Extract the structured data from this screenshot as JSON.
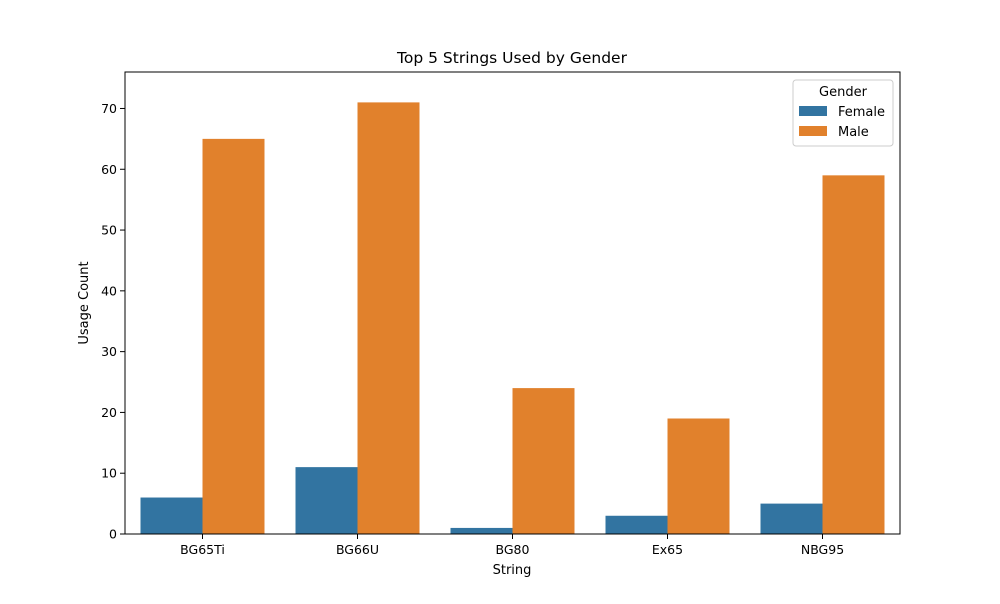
{
  "chart_data": {
    "type": "bar",
    "title": "Top 5 Strings Used by Gender",
    "xlabel": "String",
    "ylabel": "Usage Count",
    "categories": [
      "BG65Ti",
      "BG66U",
      "BG80",
      "Ex65",
      "NBG95"
    ],
    "series": [
      {
        "name": "Female",
        "color": "#3274a1",
        "values": [
          6,
          11,
          1,
          3,
          5
        ]
      },
      {
        "name": "Male",
        "color": "#e1812c",
        "values": [
          65,
          71,
          24,
          19,
          59
        ]
      }
    ],
    "ylim": [
      0,
      76
    ],
    "yticks": [
      "0",
      "10",
      "20",
      "30",
      "40",
      "50",
      "60",
      "70"
    ],
    "grid": false,
    "legend": {
      "title": "Gender",
      "placement": "top-right"
    }
  }
}
